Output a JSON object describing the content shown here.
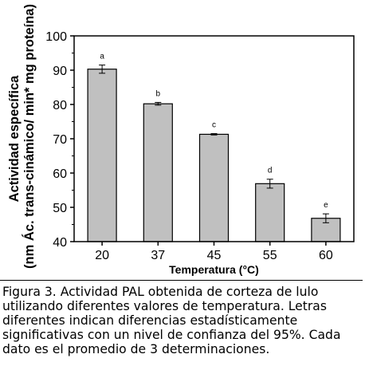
{
  "chart_data": {
    "type": "bar",
    "categories": [
      "20",
      "37",
      "45",
      "55",
      "60"
    ],
    "values": [
      90.3,
      80.2,
      71.3,
      56.9,
      46.8
    ],
    "errors": [
      1.2,
      0.4,
      0.2,
      1.3,
      1.3
    ],
    "significance_letters": [
      "a",
      "b",
      "c",
      "d",
      "e"
    ],
    "title": "",
    "xlabel": "Temperatura (°C)",
    "ylabel_line1": "Actividad específica",
    "ylabel_line2": "(nm Ác. trans-cinámico/ min* mg proteína)",
    "ylim": [
      40,
      100
    ],
    "yticks": [
      40,
      50,
      60,
      70,
      80,
      90,
      100
    ],
    "grid": false,
    "bar_color": "#c0c0c0"
  },
  "caption": "Figura 3.  Actividad PAL obtenida de corteza de lulo utilizando diferentes valores de temperatura. Letras diferentes indican diferencias estadísticamente significativas con un nivel de confianza del 95%. Cada dato es el promedio de 3 determinaciones."
}
